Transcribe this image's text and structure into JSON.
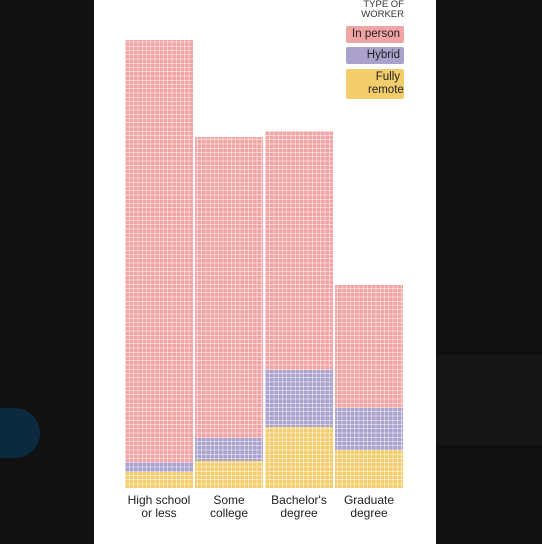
{
  "chart_data": {
    "type": "stacked-bar",
    "legend_title": "TYPE OF WORKER",
    "categories": [
      "High school or less",
      "Some college",
      "Bachelor's degree",
      "Graduate degree"
    ],
    "series": [
      {
        "name": "Fully remote",
        "color": "#f3cd6c",
        "values": [
          16,
          27,
          61,
          38
        ]
      },
      {
        "name": "Hybrid",
        "color": "#aaa1cd",
        "values": [
          10,
          23,
          57,
          42
        ]
      },
      {
        "name": "In person",
        "color": "#f1a4a4",
        "values": [
          422,
          301,
          239,
          123
        ]
      }
    ],
    "ylim": [
      0,
      448
    ],
    "legend": "top-right"
  }
}
